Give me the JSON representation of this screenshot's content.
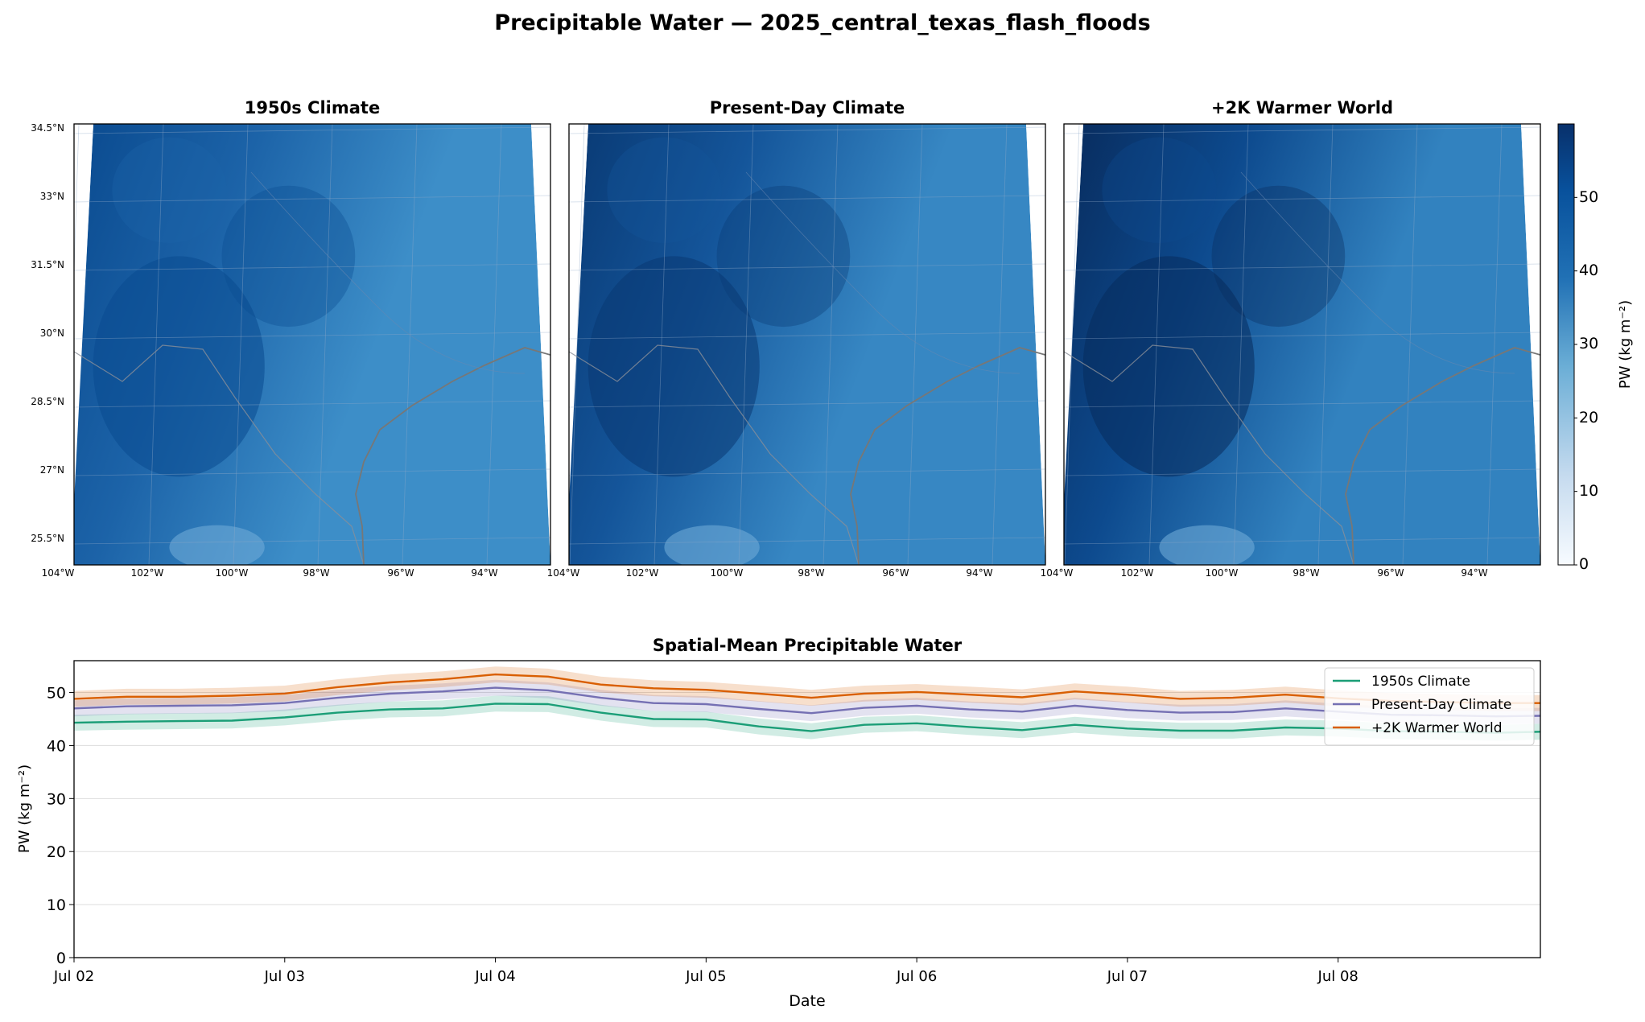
{
  "figure": {
    "title": "Precipitable Water — 2025_central_texas_flash_floods"
  },
  "maps": {
    "panels": [
      {
        "title": "1950s Climate",
        "level": 0.0
      },
      {
        "title": "Present-Day Climate",
        "level": 0.55
      },
      {
        "title": "+2K Warmer World",
        "level": 1.0
      }
    ],
    "lat_ticks": [
      "34.5°N",
      "33°N",
      "31.5°N",
      "30°N",
      "28.5°N",
      "27°N",
      "25.5°N"
    ],
    "lon_ticks": [
      "104°W",
      "102°W",
      "100°W",
      "98°W",
      "96°W",
      "94°W"
    ],
    "colorbar": {
      "label": "PW (kg m⁻²)",
      "ticks": [
        "0",
        "10",
        "20",
        "30",
        "40",
        "50"
      ],
      "range": [
        0,
        60
      ],
      "colors": {
        "light": "#f7fbff",
        "mid": "#4292c6",
        "dark": "#08306b"
      }
    }
  },
  "chart_data": {
    "type": "line",
    "title": "Spatial-Mean Precipitable Water",
    "xlabel": "Date",
    "ylabel": "PW (kg m⁻²)",
    "x_ticks": [
      "Jul 02",
      "Jul 03",
      "Jul 04",
      "Jul 05",
      "Jul 06",
      "Jul 07",
      "Jul 08"
    ],
    "xlim": [
      "Jul 02 00:00",
      "Jul 08 23:00"
    ],
    "ylim": [
      0,
      56
    ],
    "y_ticks": [
      0,
      10,
      20,
      30,
      40,
      50
    ],
    "grid": "horizontal",
    "legend_position": "top-right",
    "x_days": [
      0,
      0.25,
      0.5,
      0.75,
      1,
      1.25,
      1.5,
      1.75,
      2,
      2.25,
      2.5,
      2.75,
      3,
      3.25,
      3.5,
      3.75,
      4,
      4.25,
      4.5,
      4.75,
      5,
      5.25,
      5.5,
      5.75,
      6,
      6.25,
      6.5,
      6.75,
      6.96
    ],
    "series": [
      {
        "name": "1950s Climate",
        "color": "#1b9e77",
        "values": [
          44.3,
          44.5,
          44.6,
          44.7,
          45.3,
          46.2,
          46.8,
          47.0,
          47.9,
          47.8,
          46.2,
          45.0,
          44.9,
          43.6,
          42.7,
          43.9,
          44.2,
          43.5,
          42.9,
          43.9,
          43.2,
          42.8,
          42.8,
          43.4,
          43.2,
          42.7,
          42.6,
          42.4,
          42.6
        ],
        "band": 1.5
      },
      {
        "name": "Present-Day Climate",
        "color": "#7570b3",
        "values": [
          47.0,
          47.4,
          47.5,
          47.6,
          48.0,
          49.0,
          49.8,
          50.2,
          50.9,
          50.4,
          49.0,
          48.0,
          47.8,
          46.9,
          46.1,
          47.1,
          47.5,
          46.8,
          46.4,
          47.5,
          46.7,
          46.2,
          46.3,
          47.0,
          46.4,
          45.8,
          45.7,
          45.5,
          45.6
        ],
        "band": 1.5
      },
      {
        "name": "+2K Warmer World",
        "color": "#d95f02",
        "values": [
          48.8,
          49.2,
          49.2,
          49.4,
          49.8,
          51.0,
          51.9,
          52.5,
          53.4,
          53.0,
          51.5,
          50.8,
          50.5,
          49.8,
          49.0,
          49.8,
          50.1,
          49.6,
          49.1,
          50.2,
          49.6,
          48.8,
          49.0,
          49.6,
          48.9,
          48.4,
          48.2,
          48.0,
          48.0
        ],
        "band": 1.5
      }
    ]
  }
}
